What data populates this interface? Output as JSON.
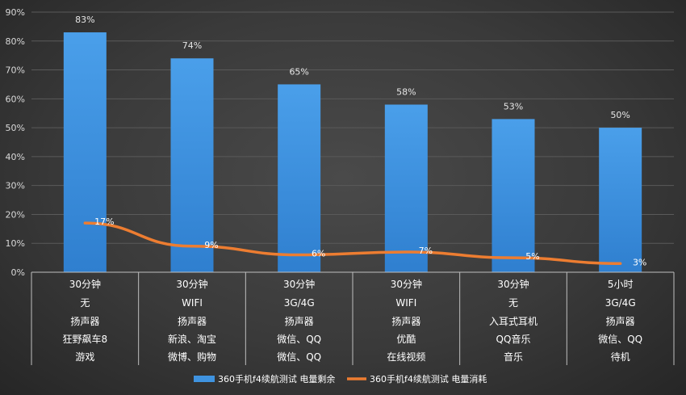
{
  "chart_data": {
    "type": "bar",
    "categories": [
      [
        "30分钟",
        "无",
        "扬声器",
        "狂野飙车8",
        "游戏"
      ],
      [
        "30分钟",
        "WIFI",
        "扬声器",
        "新浪、淘宝",
        "微博、购物"
      ],
      [
        "30分钟",
        "3G/4G",
        "扬声器",
        "微信、QQ",
        "微信、QQ"
      ],
      [
        "30分钟",
        "WIFI",
        "扬声器",
        "优酷",
        "在线视频"
      ],
      [
        "30分钟",
        "无",
        "入耳式耳机",
        "QQ音乐",
        "音乐"
      ],
      [
        "5小时",
        "3G/4G",
        "扬声器",
        "微信、QQ",
        "待机"
      ]
    ],
    "series": [
      {
        "name": "360手机f4续航测试 电量剩余",
        "type": "bar",
        "color": "#3f93e0",
        "values": [
          83,
          74,
          65,
          58,
          53,
          50
        ],
        "labels": [
          "83%",
          "74%",
          "65%",
          "58%",
          "53%",
          "50%"
        ]
      },
      {
        "name": "360手机f4续航测试 电量消耗",
        "type": "line",
        "color": "#ed7d31",
        "values": [
          17,
          9,
          6,
          7,
          5,
          3
        ],
        "labels": [
          "17%",
          "9%",
          "6%",
          "7%",
          "5%",
          "3%"
        ]
      }
    ],
    "yticks": [
      "0%",
      "10%",
      "20%",
      "30%",
      "40%",
      "50%",
      "60%",
      "70%",
      "80%",
      "90%"
    ],
    "ylim": [
      0,
      90
    ],
    "title": "",
    "xlabel": "",
    "ylabel": "",
    "legend": "bottom"
  }
}
